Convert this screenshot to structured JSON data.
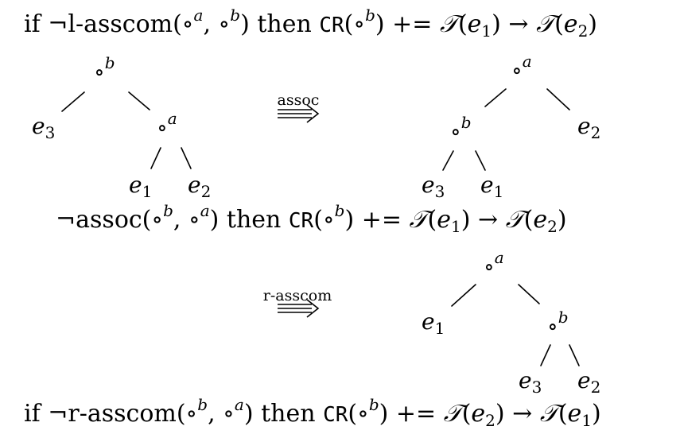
{
  "formulas": {
    "top": {
      "pre": "if ¬l-asscom(",
      "args": [
        "∘",
        "a",
        "∘",
        "b"
      ],
      "then": "then",
      "cr": "CR",
      "crop": "b",
      "peq": "+=",
      "lhs": "e1",
      "rhs": "e2"
    },
    "middle": {
      "pre": "¬assoc(",
      "args": [
        "∘",
        "b",
        "∘",
        "a"
      ],
      "then": "then",
      "cr": "CR",
      "crop": "b",
      "peq": "+=",
      "lhs": "e1",
      "rhs": "e2"
    },
    "bottom": {
      "pre": "if ¬r-asscom(",
      "args": [
        "∘",
        "b",
        "∘",
        "a"
      ],
      "then": "then",
      "cr": "CR",
      "crop": "b",
      "peq": "+=",
      "lhs": "e2",
      "rhs": "e1"
    }
  },
  "arrows": {
    "assoc": "assoc",
    "rasscom": "r-asscom"
  },
  "trees": {
    "left": {
      "root": "b",
      "leaf1": "e3",
      "inner": "a",
      "leaf2": "e1",
      "leaf3": "e2"
    },
    "right": {
      "root": "a",
      "inner": "b",
      "leaf1": "e3",
      "leaf2": "e1",
      "leaf3": "e2"
    },
    "bottom": {
      "root": "a",
      "leaf1": "e1",
      "inner": "b",
      "leaf2": "e3",
      "leaf3": "e2"
    }
  },
  "symbols": {
    "op": "∘",
    "calT": "𝒯",
    "arrow": "→",
    "neg": "¬"
  }
}
